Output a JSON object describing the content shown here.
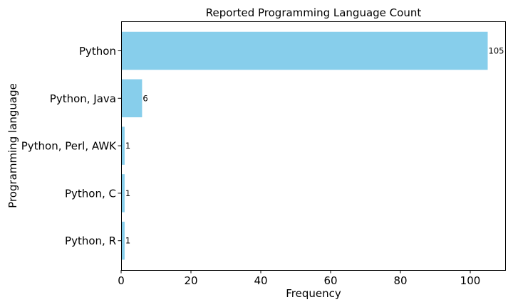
{
  "chart_data": {
    "type": "bar",
    "orientation": "horizontal",
    "title": "Reported Programming Language Count",
    "xlabel": "Frequency",
    "ylabel": "Programming language",
    "categories": [
      "Python",
      "Python, Java",
      "Python, Perl, AWK",
      "Python, C",
      "Python, R"
    ],
    "values": [
      105,
      6,
      1,
      1,
      1
    ],
    "data_labels": [
      "105",
      "6",
      "1",
      "1",
      "1"
    ],
    "xlim": [
      0,
      110
    ],
    "xticks": [
      0,
      20,
      40,
      60,
      80,
      100
    ],
    "xtick_labels": [
      "0",
      "20",
      "40",
      "60",
      "80",
      "100"
    ],
    "grid": false,
    "legend": "none",
    "bar_color": "#87ceeb"
  }
}
